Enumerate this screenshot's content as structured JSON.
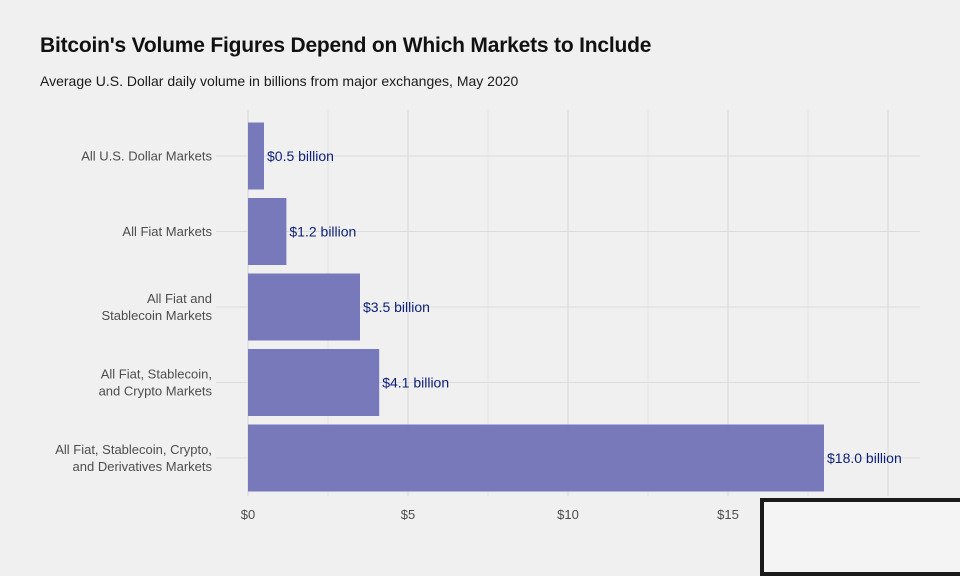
{
  "header": {
    "title": "Bitcoin's Volume Figures Depend on Which Markets to Include",
    "subtitle": "Average U.S. Dollar daily volume in billions from major exchanges, May 2020"
  },
  "chart_data": {
    "type": "bar",
    "orientation": "horizontal",
    "categories": [
      "All U.S. Dollar Markets",
      "All Fiat Markets",
      "All Fiat and\nStablecoin Markets",
      "All Fiat, Stablecoin,\nand Crypto Markets",
      "All Fiat, Stablecoin, Crypto,\nand Derivatives Markets"
    ],
    "values": [
      0.5,
      1.2,
      3.5,
      4.1,
      18.0
    ],
    "data_labels": [
      "$0.5 billion",
      "$1.2 billion",
      "$3.5 billion",
      "$4.1 billion",
      "$18.0 billion"
    ],
    "x_ticks": [
      0,
      5,
      10,
      15
    ],
    "x_tick_labels": [
      "$0",
      "$5",
      "$10",
      "$15"
    ],
    "xlim": [
      0,
      20
    ],
    "grid": true,
    "colors": {
      "bar": "#7779bb",
      "data_label": "#0c1f78",
      "background": "#f0f0f0",
      "grid": "#dcdcdc"
    }
  }
}
